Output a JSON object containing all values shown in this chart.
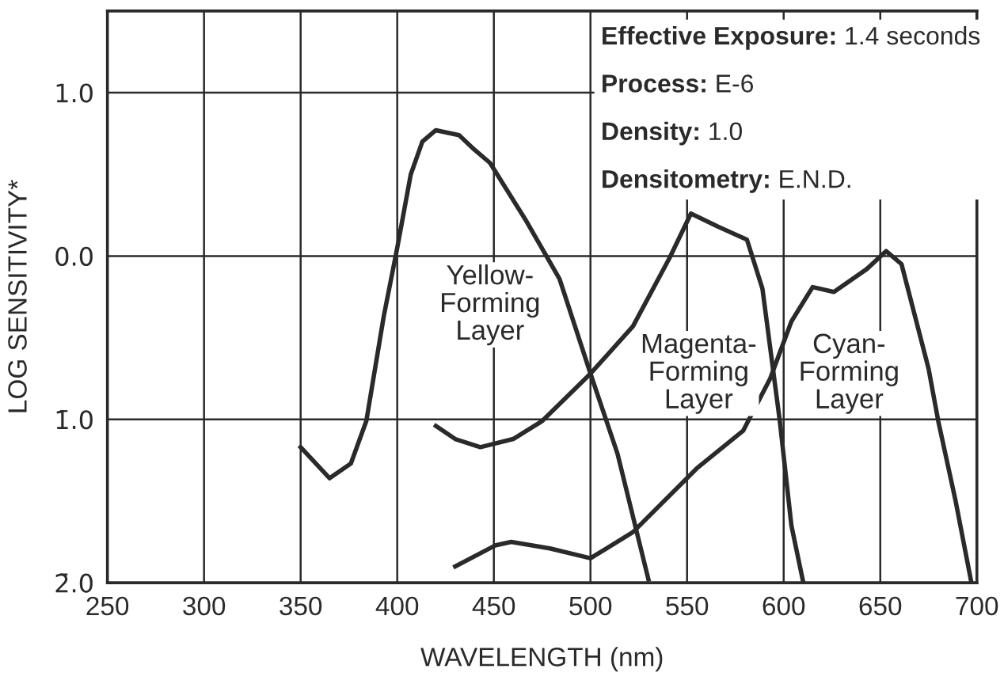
{
  "chart_data": {
    "type": "line",
    "xlabel": "WAVELENGTH (nm)",
    "ylabel": "LOG SENSITIVITY*",
    "xlim": [
      250,
      700
    ],
    "xticks": [
      250,
      300,
      350,
      400,
      450,
      500,
      550,
      600,
      650,
      700
    ],
    "ylim": [
      -2,
      1.5
    ],
    "yticks": [
      {
        "value": 1,
        "label": "1.0"
      },
      {
        "value": 0,
        "label": "0.0"
      },
      {
        "value": -1,
        "label": "1̄.0"
      },
      {
        "value": -2,
        "label": "2̄.0"
      }
    ],
    "grid": true,
    "line_style": "solid",
    "marker": "none",
    "series": [
      {
        "color": "#2a2a2a",
        "x": [
          350,
          365,
          376,
          384,
          393,
          400,
          407,
          413,
          420,
          432,
          440,
          448,
          467,
          484,
          500,
          514,
          530
        ],
        "values": [
          -1.17,
          -1.36,
          -1.27,
          -1.01,
          -0.37,
          0.05,
          0.5,
          0.7,
          0.77,
          0.74,
          0.65,
          0.57,
          0.21,
          -0.14,
          -0.72,
          -1.21,
          -1.98
        ]
      },
      {
        "color": "#2a2a2a",
        "x": [
          420,
          430,
          443,
          460,
          475,
          500,
          522,
          541,
          552,
          566,
          581,
          589,
          598,
          604,
          610
        ],
        "values": [
          -1.04,
          -1.12,
          -1.17,
          -1.12,
          -1.01,
          -0.72,
          -0.43,
          -0.01,
          0.26,
          0.18,
          0.1,
          -0.2,
          -1.01,
          -1.65,
          -1.99
        ]
      },
      {
        "color": "#2a2a2a",
        "x": [
          430,
          451,
          459,
          479,
          500,
          522,
          555,
          579,
          593,
          604,
          615,
          626,
          643,
          653,
          661,
          675,
          680,
          689,
          697
        ],
        "values": [
          -1.9,
          -1.77,
          -1.75,
          -1.79,
          -1.85,
          -1.69,
          -1.3,
          -1.07,
          -0.75,
          -0.4,
          -0.19,
          -0.22,
          -0.08,
          0.03,
          -0.05,
          -0.69,
          -1.01,
          -1.5,
          -1.99
        ]
      }
    ],
    "annotations": [
      "Yellow-\nForming\nLayer",
      "Magenta-\nForming\nLayer",
      "Cyan-\nForming\nLayer",
      "Effective Exposure: 1.4 seconds",
      "Process: E-6",
      "Density: 1.0",
      "Densitometry: E.N.D."
    ]
  }
}
